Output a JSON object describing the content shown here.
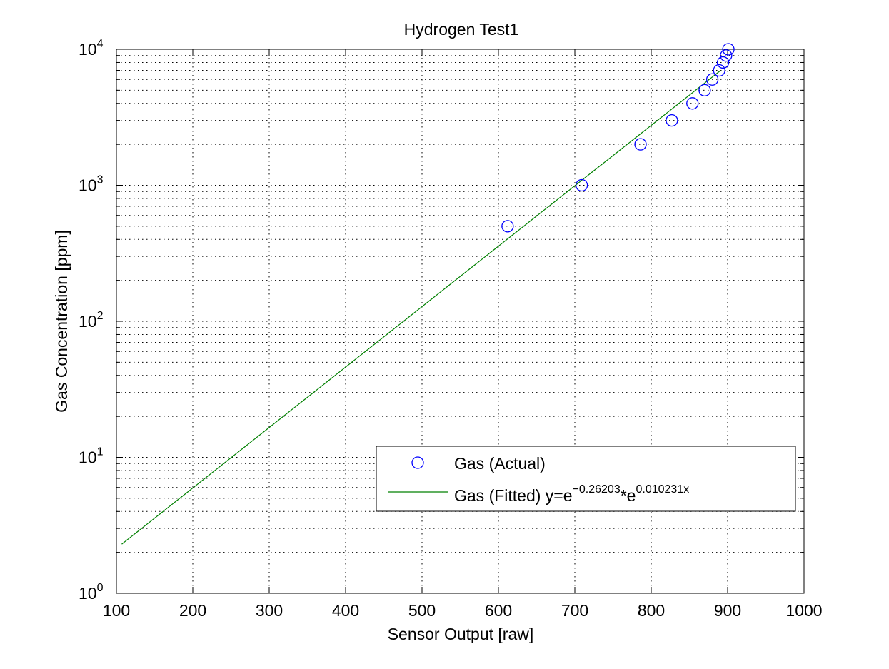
{
  "chart_data": {
    "type": "scatter",
    "title": "Hydrogen Test1",
    "xlabel": "Sensor Output [raw]",
    "ylabel": "Gas Concentration [ppm]",
    "xlim": [
      100,
      1000
    ],
    "ylim": [
      1,
      10000
    ],
    "yscale": "log",
    "grid": true,
    "legend_position": "bottom-right",
    "x_ticks": [
      100,
      200,
      300,
      400,
      500,
      600,
      700,
      800,
      900,
      1000
    ],
    "x_tick_labels": [
      "100",
      "200",
      "300",
      "400",
      "500",
      "600",
      "700",
      "800",
      "900",
      "1000"
    ],
    "y_ticks": [
      {
        "value": 1,
        "base": "10",
        "exp": "0"
      },
      {
        "value": 10,
        "base": "10",
        "exp": "1"
      },
      {
        "value": 100,
        "base": "10",
        "exp": "2"
      },
      {
        "value": 1000,
        "base": "10",
        "exp": "3"
      },
      {
        "value": 10000,
        "base": "10",
        "exp": "4"
      }
    ],
    "series": [
      {
        "name": "Gas (Actual)",
        "kind": "markers",
        "marker": "circle",
        "color": "#0000ff",
        "x": [
          612,
          709,
          786,
          827,
          854,
          870,
          880,
          889,
          894,
          898,
          901
        ],
        "y": [
          500,
          1000,
          2000,
          3000,
          4000,
          5000,
          6000,
          7000,
          8000,
          9000,
          10000
        ]
      },
      {
        "name": "Gas (Fitted)",
        "kind": "line",
        "color": "#008000",
        "equation": {
          "prefix": "Gas (Fitted) y=e",
          "exp1": "−0.26203",
          "star": "*",
          "base2": "e",
          "exp2": "0.010231x"
        },
        "a": -0.26203,
        "b": 0.010231,
        "x_range": [
          107,
          891
        ]
      }
    ]
  }
}
